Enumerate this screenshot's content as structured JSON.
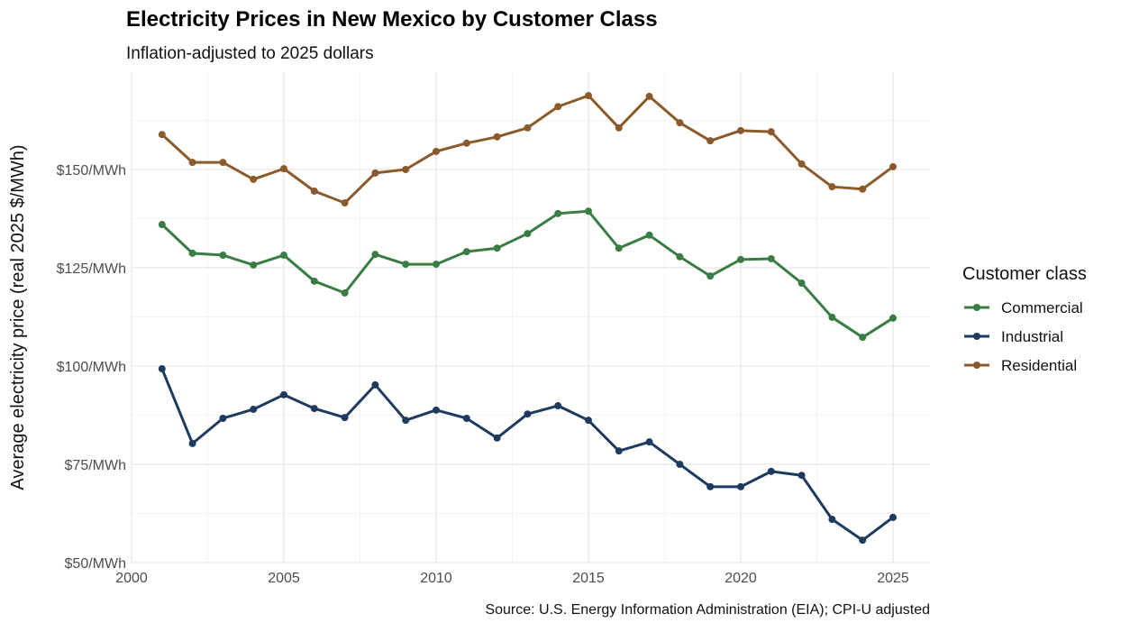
{
  "chart_data": {
    "type": "line",
    "title": "Electricity Prices in New Mexico by Customer Class",
    "subtitle": "Inflation-adjusted to 2025 dollars",
    "xlabel": "",
    "ylabel": "Average electricity price (real 2025 $/MWh)",
    "caption": "Source: U.S. Energy Information Administration (EIA); CPI-U adjusted",
    "xlim": [
      2000,
      2026
    ],
    "ylim": [
      50,
      175
    ],
    "x_ticks": [
      2000,
      2005,
      2010,
      2015,
      2020,
      2025
    ],
    "x_tick_labels": [
      "2000",
      "2005",
      "2010",
      "2015",
      "2020",
      "2025"
    ],
    "y_ticks": [
      50,
      75,
      100,
      125,
      150
    ],
    "y_tick_labels": [
      "$50/MWh",
      "$75/MWh",
      "$100/MWh",
      "$125/MWh",
      "$150/MWh"
    ],
    "grid": true,
    "legend": {
      "title": "Customer class",
      "placement": "right"
    },
    "x": [
      2001,
      2002,
      2003,
      2004,
      2005,
      2006,
      2007,
      2008,
      2009,
      2010,
      2011,
      2012,
      2013,
      2014,
      2015,
      2016,
      2017,
      2018,
      2019,
      2020,
      2021,
      2022,
      2023,
      2024,
      2025
    ],
    "series": [
      {
        "name": "Commercial",
        "color": "#3a7d44",
        "values": [
          136.0,
          128.7,
          128.2,
          125.7,
          128.2,
          121.6,
          118.6,
          128.4,
          125.9,
          125.9,
          129.1,
          130.0,
          133.7,
          138.8,
          139.4,
          130.0,
          133.3,
          127.8,
          122.9,
          127.1,
          127.3,
          121.1,
          112.4,
          107.3,
          112.2
        ]
      },
      {
        "name": "Industrial",
        "color": "#1f3a5f",
        "values": [
          99.3,
          80.3,
          86.7,
          89.0,
          92.7,
          89.2,
          86.9,
          95.2,
          86.2,
          88.8,
          86.7,
          81.7,
          87.8,
          89.9,
          86.2,
          78.4,
          80.7,
          75.0,
          69.3,
          69.3,
          73.2,
          72.2,
          61.0,
          55.7,
          61.5
        ]
      },
      {
        "name": "Residential",
        "color": "#8b5a2b",
        "values": [
          158.9,
          151.8,
          151.8,
          147.5,
          150.2,
          144.5,
          141.5,
          149.1,
          150.0,
          154.6,
          156.7,
          158.3,
          160.6,
          166.0,
          168.8,
          160.6,
          168.6,
          161.9,
          157.3,
          159.9,
          159.6,
          151.4,
          145.6,
          145.0,
          150.7
        ]
      }
    ]
  }
}
